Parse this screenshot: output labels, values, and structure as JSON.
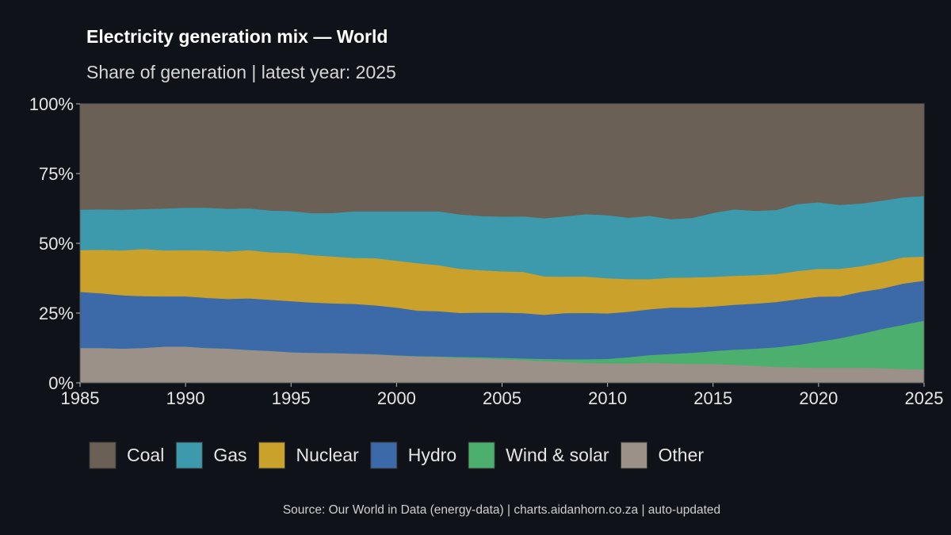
{
  "chart_data": {
    "type": "area",
    "stacked": true,
    "normalized": true,
    "title": "Electricity generation mix — World",
    "subtitle": "Share of generation | latest year: 2025",
    "caption": "Source: Our World in Data (energy-data) | charts.aidanhorn.co.za | auto-updated",
    "x_ticks": [
      "1985",
      "1990",
      "1995",
      "2000",
      "2005",
      "2010",
      "2015",
      "2020",
      "2025"
    ],
    "y_ticks": [
      "0%",
      "25%",
      "50%",
      "75%",
      "100%"
    ],
    "xlim": [
      1985,
      2025
    ],
    "ylim": [
      0,
      100
    ],
    "legend_position": "bottom",
    "x": [
      1985,
      1986,
      1987,
      1988,
      1989,
      1990,
      1991,
      1992,
      1993,
      1994,
      1995,
      1996,
      1997,
      1998,
      1999,
      2000,
      2001,
      2002,
      2003,
      2004,
      2005,
      2006,
      2007,
      2008,
      2009,
      2010,
      2011,
      2012,
      2013,
      2014,
      2015,
      2016,
      2017,
      2018,
      2019,
      2020,
      2021,
      2022,
      2023,
      2024,
      2025
    ],
    "series": [
      {
        "name": "Other",
        "color": "#9b9189",
        "values": [
          12.5,
          12.5,
          12.3,
          12.5,
          13.0,
          13.0,
          12.5,
          12.3,
          11.8,
          11.5,
          11.0,
          10.8,
          10.7,
          10.5,
          10.2,
          9.8,
          9.5,
          9.3,
          9.0,
          8.8,
          8.5,
          8.2,
          7.8,
          7.5,
          7.2,
          7.0,
          7.0,
          7.2,
          7.0,
          6.8,
          6.8,
          6.5,
          6.2,
          5.8,
          5.6,
          5.4,
          5.5,
          5.4,
          5.3,
          5.0,
          4.8
        ]
      },
      {
        "name": "Wind & solar",
        "color": "#4caf6e",
        "values": [
          0.0,
          0.0,
          0.0,
          0.0,
          0.0,
          0.0,
          0.0,
          0.0,
          0.0,
          0.0,
          0.0,
          0.0,
          0.0,
          0.0,
          0.1,
          0.1,
          0.1,
          0.2,
          0.3,
          0.4,
          0.5,
          0.6,
          0.8,
          1.0,
          1.3,
          1.6,
          2.2,
          2.8,
          3.4,
          4.0,
          4.6,
          5.4,
          6.2,
          7.1,
          8.0,
          9.4,
          10.5,
          12.2,
          14.0,
          15.8,
          17.5
        ]
      },
      {
        "name": "Hydro",
        "color": "#3c6aa8",
        "values": [
          20.1,
          19.6,
          19.1,
          18.6,
          18.0,
          18.0,
          18.0,
          17.8,
          18.5,
          18.3,
          18.3,
          18.0,
          17.8,
          17.8,
          17.5,
          17.1,
          16.3,
          16.2,
          15.8,
          16.0,
          16.2,
          16.2,
          15.8,
          16.5,
          16.6,
          16.3,
          16.3,
          16.4,
          16.6,
          16.2,
          16.0,
          16.1,
          16.3,
          16.4,
          16.4,
          16.1,
          15.0,
          15.0,
          14.5,
          14.8,
          14.3
        ]
      },
      {
        "name": "Nuclear",
        "color": "#c9a12b",
        "values": [
          15.0,
          15.6,
          16.1,
          16.9,
          16.5,
          16.6,
          17.0,
          17.0,
          17.3,
          17.0,
          17.3,
          17.0,
          16.8,
          16.5,
          16.9,
          16.8,
          17.0,
          16.5,
          15.8,
          15.2,
          14.8,
          14.8,
          13.8,
          13.1,
          13.0,
          12.6,
          11.7,
          10.8,
          10.7,
          10.8,
          10.6,
          10.4,
          10.3,
          10.1,
          10.1,
          10.0,
          9.9,
          9.2,
          9.4,
          9.4,
          8.7
        ]
      },
      {
        "name": "Gas",
        "color": "#3d9aad",
        "values": [
          14.5,
          14.5,
          14.6,
          14.3,
          15.0,
          15.2,
          15.3,
          15.3,
          15.0,
          15.0,
          15.0,
          15.0,
          15.6,
          16.7,
          16.8,
          17.7,
          18.6,
          19.3,
          19.5,
          19.4,
          19.6,
          19.9,
          20.8,
          21.6,
          22.4,
          22.6,
          22.0,
          22.7,
          21.0,
          21.3,
          22.9,
          23.8,
          23.3,
          23.2,
          24.0,
          23.8,
          22.9,
          22.5,
          22.1,
          21.5,
          21.7
        ]
      },
      {
        "name": "Coal",
        "color": "#6b6055",
        "values": [
          37.9,
          37.8,
          37.9,
          37.7,
          37.5,
          37.2,
          37.2,
          37.6,
          37.4,
          38.2,
          38.4,
          39.2,
          39.1,
          38.5,
          38.5,
          38.5,
          38.5,
          38.5,
          39.6,
          40.2,
          40.4,
          40.3,
          41.0,
          40.3,
          39.5,
          39.9,
          40.8,
          40.1,
          41.3,
          40.9,
          39.1,
          37.8,
          38.7,
          38.4,
          35.9,
          35.3,
          36.2,
          35.7,
          34.7,
          33.5,
          33.0
        ]
      }
    ]
  }
}
